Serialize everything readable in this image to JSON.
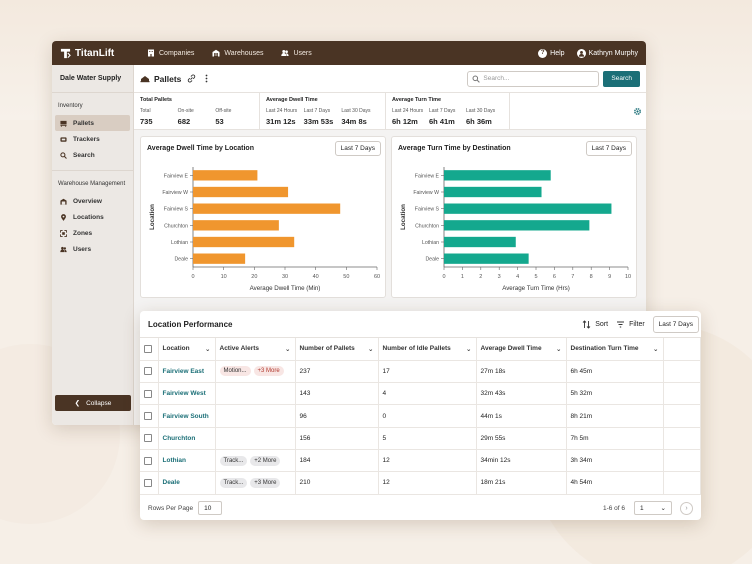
{
  "app": {
    "name": "TitanLift"
  },
  "nav": [
    {
      "label": "Companies",
      "icon": "building-icon"
    },
    {
      "label": "Warehouses",
      "icon": "warehouse-icon"
    },
    {
      "label": "Users",
      "icon": "users-icon"
    }
  ],
  "topbar": {
    "help": "Help",
    "user": "Kathryn Murphy"
  },
  "sidebar": {
    "org": "Dale Water Supply",
    "section1": "Inventory",
    "inventory": [
      {
        "label": "Pallets",
        "icon": "pallet-icon",
        "active": true
      },
      {
        "label": "Trackers",
        "icon": "tracker-icon"
      },
      {
        "label": "Search",
        "icon": "search-icon"
      }
    ],
    "section2": "Warehouse Management",
    "management": [
      {
        "label": "Overview",
        "icon": "warehouse-icon"
      },
      {
        "label": "Locations",
        "icon": "pin-icon"
      },
      {
        "label": "Zones",
        "icon": "zones-icon"
      },
      {
        "label": "Users",
        "icon": "users-icon"
      }
    ],
    "collapse": "Collapse"
  },
  "page": {
    "title": "Pallets"
  },
  "search": {
    "placeholder": "Search...",
    "button": "Search"
  },
  "stats": {
    "pallets": {
      "title": "Total Pallets",
      "labels": [
        "Total",
        "On-site",
        "Off-site"
      ],
      "values": [
        "735",
        "682",
        "53"
      ]
    },
    "dwell": {
      "title": "Average Dwell Time",
      "labels": [
        "Last 24 Hours",
        "Last 7 Days",
        "Last 30 Days"
      ],
      "values": [
        "31m 12s",
        "33m 53s",
        "34m 8s"
      ]
    },
    "turn": {
      "title": "Average Turn Time",
      "labels": [
        "Last 24 Hours",
        "Last 7 Days",
        "Last 30 Days"
      ],
      "values": [
        "6h 12m",
        "6h 41m",
        "6h 36m"
      ]
    }
  },
  "charts": {
    "dwell_title": "Average Dwell Time by Location",
    "dwell_range": "Last 7 Days",
    "turn_title": "Average Turn Time by Destination",
    "turn_range": "Last 7 Days"
  },
  "chart_data": [
    {
      "type": "bar",
      "orientation": "horizontal",
      "title": "Average Dwell Time by Location",
      "categories": [
        "Fairview E",
        "Fairview W",
        "Fairview S",
        "Churchton",
        "Lothian",
        "Deale"
      ],
      "values": [
        21,
        31,
        48,
        28,
        33,
        17
      ],
      "xlabel": "Average Dwell Time (Min)",
      "ylabel": "Location",
      "xlim": [
        0,
        60
      ],
      "xticks": [
        0,
        10,
        20,
        30,
        40,
        50,
        60
      ],
      "color": "#f0962e"
    },
    {
      "type": "bar",
      "orientation": "horizontal",
      "title": "Average Turn Time by Destination",
      "categories": [
        "Fairview E",
        "Fairview W",
        "Fairview S",
        "Churchton",
        "Lothian",
        "Deale"
      ],
      "values": [
        5.8,
        5.3,
        9.1,
        7.9,
        3.9,
        4.6
      ],
      "xlabel": "Average Turn Time (Hrs)",
      "ylabel": "Location",
      "xlim": [
        0,
        10
      ],
      "xticks": [
        0,
        1,
        2,
        3,
        4,
        5,
        6,
        7,
        8,
        9,
        10
      ],
      "color": "#14a88e"
    }
  ],
  "perf": {
    "title": "Location Performance",
    "sort": "Sort",
    "filter": "Filter",
    "range": "Last 7 Days",
    "columns": [
      "Location",
      "Active Alerts",
      "Number of Pallets",
      "Number of Idle Pallets",
      "Average Dwell Time",
      "Destination Turn Time"
    ],
    "rows": [
      {
        "location": "Fairview East",
        "alerts": [
          "Motion..."
        ],
        "more": "+3 More",
        "pallets": "237",
        "idle": "17",
        "dwell": "27m 18s",
        "turn": "6h 45m"
      },
      {
        "location": "Fairview West",
        "alerts": [],
        "more": "",
        "pallets": "143",
        "idle": "4",
        "dwell": "32m 43s",
        "turn": "5h 32m"
      },
      {
        "location": "Fairview South",
        "alerts": [],
        "more": "",
        "pallets": "96",
        "idle": "0",
        "dwell": "44m 1s",
        "turn": "8h 21m"
      },
      {
        "location": "Churchton",
        "alerts": [],
        "more": "",
        "pallets": "156",
        "idle": "5",
        "dwell": "29m 55s",
        "turn": "7h 5m"
      },
      {
        "location": "Lothian",
        "alerts": [
          "Track..."
        ],
        "more": "+2 More",
        "pallets": "184",
        "idle": "12",
        "dwell": "34min 12s",
        "turn": "3h 34m"
      },
      {
        "location": "Deale",
        "alerts": [
          "Track..."
        ],
        "more": "+3 More",
        "pallets": "210",
        "idle": "12",
        "dwell": "18m 21s",
        "turn": "4h 54m"
      }
    ],
    "rows_per_page_label": "Rows Per Page",
    "rows_per_page": "10",
    "range_text": "1-6 of 6",
    "page": "1"
  }
}
